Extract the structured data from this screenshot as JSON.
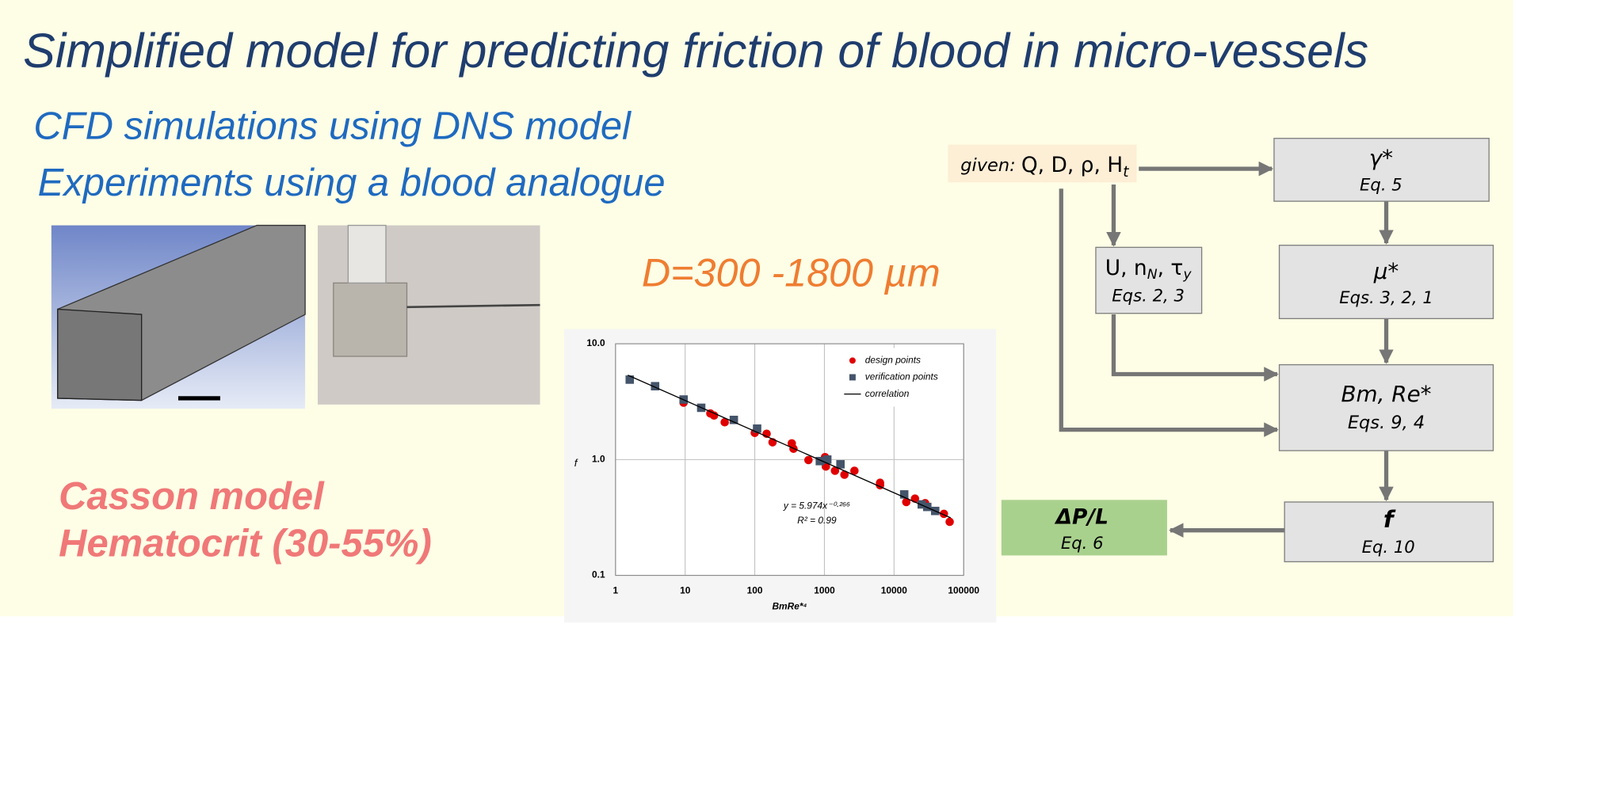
{
  "slide": {
    "title": "Simplified model for predicting friction of blood in micro-vessels",
    "bullets": [
      "CFD simulations using DNS model",
      "Experiments using a blood analogue"
    ],
    "diameter": "D=300 -1800 µm",
    "model": [
      "Casson model",
      "Hematocrit (30-55%)"
    ]
  },
  "flowchart": {
    "given": {
      "prefix": "given:",
      "label": "Q, D, ρ, H",
      "sub": "t"
    },
    "gamma": {
      "label": "γ*",
      "eq": "Eq. 5"
    },
    "u": {
      "label": "U, n",
      "sub": "N",
      "label2": ", τ",
      "sub2": "y",
      "eq": "Eqs. 2, 3"
    },
    "mu": {
      "label": "μ*",
      "eq": "Eqs. 3, 2, 1"
    },
    "bm": {
      "label": "Bm, Re*",
      "eq": "Eqs. 9, 4"
    },
    "f": {
      "label": "f",
      "eq": "Eq. 10"
    },
    "dp": {
      "label": "ΔP/L",
      "eq": "Eq. 6"
    }
  },
  "chart_data": {
    "type": "scatter",
    "xlabel": "BmRe*⁴",
    "ylabel": "f",
    "log_x": true,
    "log_y": true,
    "grid": true,
    "legend": "upper right",
    "xlim": [
      1,
      100000
    ],
    "xticks": [
      1,
      10,
      100,
      1000,
      10000,
      100000
    ],
    "ylim": [
      0.1,
      10
    ],
    "yticks": [
      0.1,
      {
        "value": 1,
        "label": "1.0"
      },
      {
        "value": 10,
        "label": "10.0"
      }
    ],
    "annotations": [
      "y = 5.974x⁻⁰·²⁶⁶",
      "R² = 0.99"
    ],
    "series": [
      {
        "name": "design points",
        "color": "#e00000",
        "marker": "circle",
        "x": [
          9.5,
          23,
          26,
          37,
          50,
          100,
          148,
          180,
          340,
          360,
          590,
          1020,
          1050,
          1420,
          1940,
          2700,
          6300,
          6300,
          15000,
          20000,
          28000,
          52000,
          63000
        ],
        "values": [
          3.1,
          2.5,
          2.4,
          2.1,
          2.2,
          1.7,
          1.67,
          1.41,
          1.38,
          1.24,
          0.99,
          1.05,
          0.87,
          0.8,
          0.74,
          0.8,
          0.63,
          0.6,
          0.43,
          0.46,
          0.42,
          0.34,
          0.29
        ]
      },
      {
        "name": "verification points",
        "color": "#44546a",
        "marker": "square",
        "x": [
          1.6,
          3.7,
          9.5,
          17,
          50,
          108,
          860,
          1100,
          1700,
          14000,
          25000,
          30000,
          39000
        ],
        "values": [
          4.9,
          4.3,
          3.3,
          2.8,
          2.2,
          1.85,
          0.97,
          1,
          0.91,
          0.5,
          0.41,
          0.39,
          0.36
        ]
      },
      {
        "name": "correlation",
        "color": "#000000",
        "marker": "line",
        "x": [
          1.5,
          65000
        ],
        "values": [
          5.36,
          0.314
        ]
      }
    ]
  }
}
